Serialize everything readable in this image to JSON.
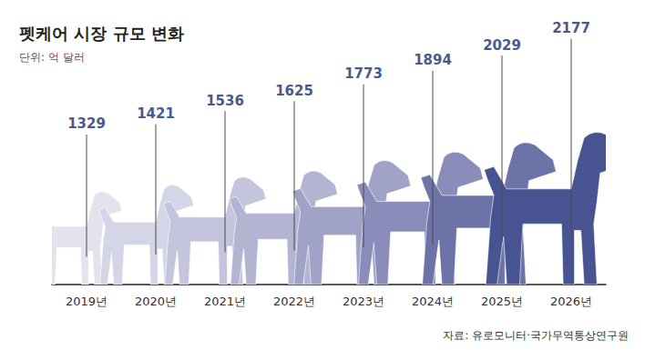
{
  "chart_data": {
    "type": "bar",
    "title": "펫케어 시장 규모 변화",
    "subtitle": "단위: 억 달러",
    "annotations": [
      "자료: 유로모니터·국가무역통상연구원"
    ],
    "categories": [
      "2019년",
      "2020년",
      "2021년",
      "2022년",
      "2023년",
      "2024년",
      "2025년",
      "2026년"
    ],
    "values": [
      1329,
      1421,
      1536,
      1625,
      1773,
      1894,
      2029,
      2177
    ],
    "colors": [
      "#e3e3ee",
      "#d4d5e6",
      "#c4c5dc",
      "#b3b4d2",
      "#a0a2c6",
      "#8a8dba",
      "#6d72a7",
      "#485391"
    ],
    "ylim": [
      0,
      2400
    ],
    "data_labels": true,
    "tick_labels": "x",
    "grid": false
  }
}
